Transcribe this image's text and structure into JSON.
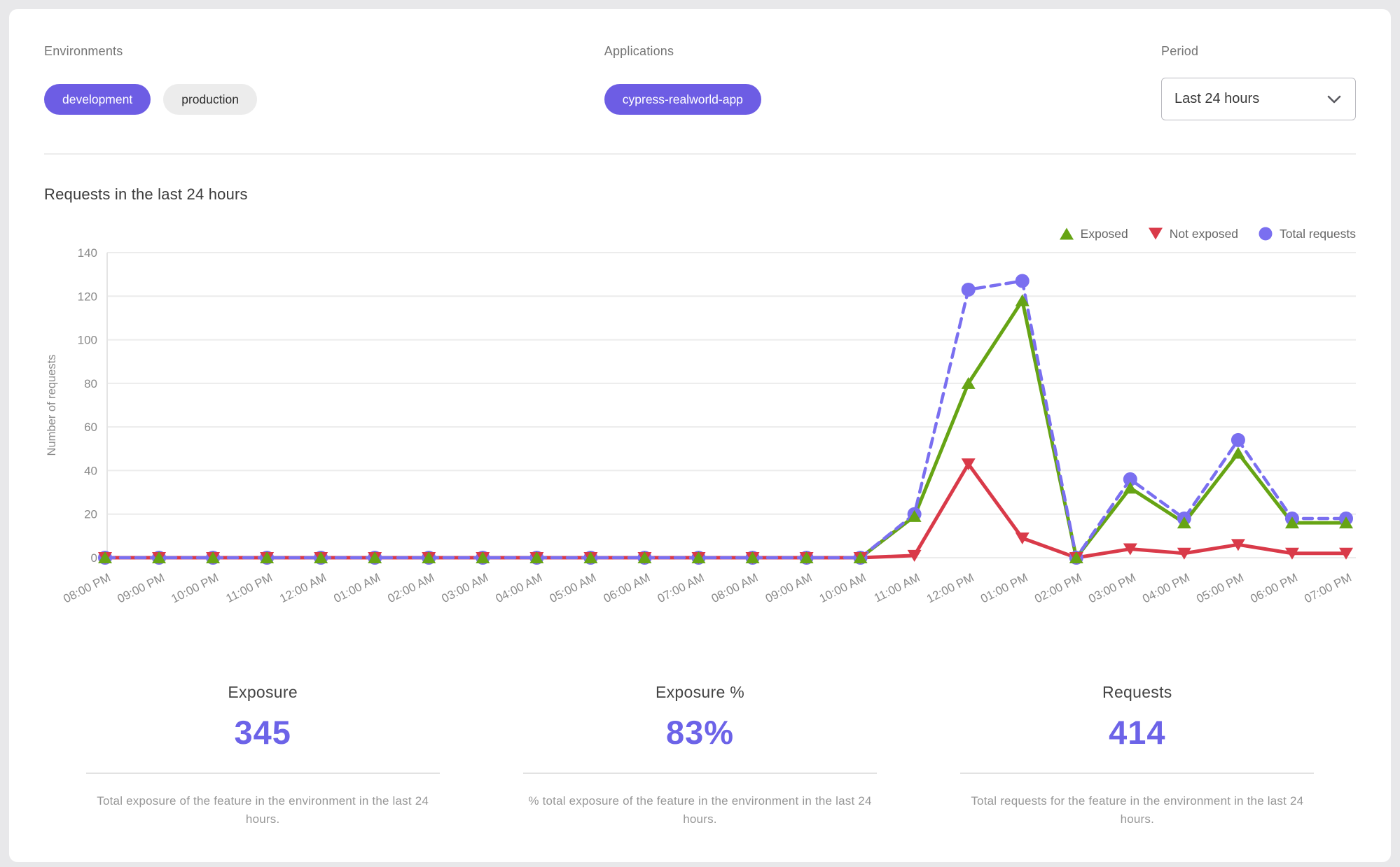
{
  "filters": {
    "environments": {
      "label": "Environments",
      "options": [
        "development",
        "production"
      ],
      "selected": "development"
    },
    "applications": {
      "label": "Applications",
      "options": [
        "cypress-realworld-app"
      ]
    },
    "period": {
      "label": "Period",
      "value": "Last 24 hours"
    }
  },
  "chart_data": {
    "type": "line",
    "title": "Requests in the last 24 hours",
    "xlabel": "",
    "ylabel": "Number of requests",
    "ylim": [
      0,
      140
    ],
    "ytick_step": 20,
    "grid": "horizontal",
    "legend_position": "top-right",
    "categories": [
      "08:00 PM",
      "09:00 PM",
      "10:00 PM",
      "11:00 PM",
      "12:00 AM",
      "01:00 AM",
      "02:00 AM",
      "03:00 AM",
      "04:00 AM",
      "05:00 AM",
      "06:00 AM",
      "07:00 AM",
      "08:00 AM",
      "09:00 AM",
      "10:00 AM",
      "11:00 AM",
      "12:00 PM",
      "01:00 PM",
      "02:00 PM",
      "03:00 PM",
      "04:00 PM",
      "05:00 PM",
      "06:00 PM",
      "07:00 PM"
    ],
    "series": [
      {
        "name": "Exposed",
        "marker": "triangle-up",
        "line": "solid",
        "color": "#66a414",
        "values": [
          0,
          0,
          0,
          0,
          0,
          0,
          0,
          0,
          0,
          0,
          0,
          0,
          0,
          0,
          0,
          19,
          80,
          118,
          0,
          32,
          16,
          48,
          16,
          16
        ]
      },
      {
        "name": "Not exposed",
        "marker": "triangle-down",
        "line": "solid",
        "color": "#d93a49",
        "values": [
          0,
          0,
          0,
          0,
          0,
          0,
          0,
          0,
          0,
          0,
          0,
          0,
          0,
          0,
          0,
          1,
          43,
          9,
          0,
          4,
          2,
          6,
          2,
          2
        ]
      },
      {
        "name": "Total requests",
        "marker": "circle",
        "line": "dashed",
        "color": "#7a6ff0",
        "values": [
          0,
          0,
          0,
          0,
          0,
          0,
          0,
          0,
          0,
          0,
          0,
          0,
          0,
          0,
          0,
          20,
          123,
          127,
          0,
          36,
          18,
          54,
          18,
          18
        ]
      }
    ]
  },
  "stats": {
    "items": [
      {
        "label": "Exposure",
        "value": "345",
        "description": "Total exposure of the feature in the environment in the last 24 hours."
      },
      {
        "label": "Exposure %",
        "value": "83%",
        "description": "% total exposure of the feature in the environment in the last 24 hours."
      },
      {
        "label": "Requests",
        "value": "414",
        "description": "Total requests for the feature in the environment in the last 24 hours."
      }
    ]
  },
  "colors": {
    "accent": "#6d5de4",
    "stat_value": "#6c63e8",
    "exposed": "#66a414",
    "not_exposed": "#d93a49",
    "total": "#7a6ff0"
  }
}
